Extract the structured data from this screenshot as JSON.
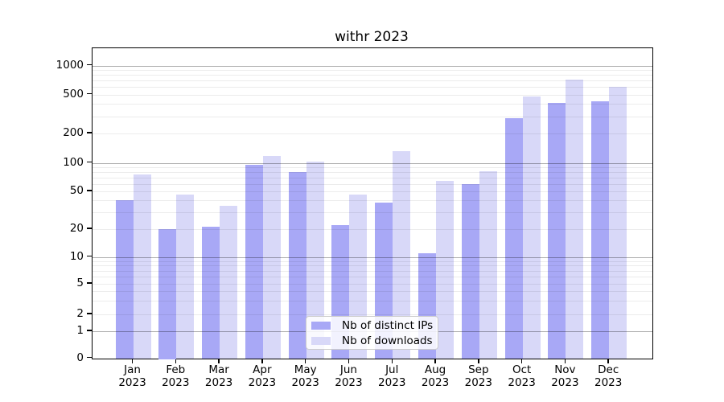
{
  "chart_data": {
    "type": "bar",
    "title": "withr 2023",
    "categories": [
      "Jan",
      "Feb",
      "Mar",
      "Apr",
      "May",
      "Jun",
      "Jul",
      "Aug",
      "Sep",
      "Oct",
      "Nov",
      "Dec"
    ],
    "year_label": "2023",
    "series": [
      {
        "name": "Nb of distinct IPs",
        "color": "#a8a8f6",
        "values": [
          40,
          20,
          21,
          96,
          80,
          22,
          38,
          11,
          60,
          287,
          410,
          425
        ]
      },
      {
        "name": "Nb of downloads",
        "color": "#d8d8f8",
        "values": [
          75,
          46,
          35,
          117,
          102,
          46,
          132,
          65,
          82,
          475,
          710,
          606
        ]
      }
    ],
    "xlabel": "",
    "ylabel": "",
    "yscale": "log (symlog near zero)",
    "y_ticks": [
      0,
      1,
      2,
      5,
      10,
      20,
      50,
      100,
      200,
      500,
      1000
    ],
    "y_major_gridlines": [
      1,
      10,
      100,
      1000
    ],
    "ylim": [
      0,
      1300
    ],
    "grid": true,
    "legend_position": "lower center"
  }
}
